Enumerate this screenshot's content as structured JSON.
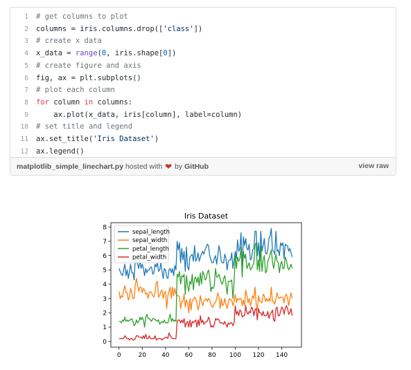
{
  "gist": {
    "code_lines": [
      [
        {
          "t": "# get columns to plot",
          "c": "comment"
        }
      ],
      [
        {
          "t": "columns = iris.columns.drop(["
        },
        {
          "t": "'class'",
          "c": "str"
        },
        {
          "t": "])"
        }
      ],
      [
        {
          "t": "# create x data",
          "c": "comment"
        }
      ],
      [
        {
          "t": "x_data = "
        },
        {
          "t": "range",
          "c": "builtin"
        },
        {
          "t": "("
        },
        {
          "t": "0",
          "c": "num"
        },
        {
          "t": ", iris.shape["
        },
        {
          "t": "0",
          "c": "num"
        },
        {
          "t": "])"
        }
      ],
      [
        {
          "t": "# create figure and axis",
          "c": "comment"
        }
      ],
      [
        {
          "t": "fig, ax = plt.subplots()"
        }
      ],
      [
        {
          "t": "# plot each column",
          "c": "comment"
        }
      ],
      [
        {
          "t": "for",
          "c": "kw"
        },
        {
          "t": " column "
        },
        {
          "t": "in",
          "c": "kw"
        },
        {
          "t": " columns:"
        }
      ],
      [
        {
          "t": "    ax.plot(x_data, iris[column], label=column)"
        }
      ],
      [
        {
          "t": "# set title and legend",
          "c": "comment"
        }
      ],
      [
        {
          "t": "ax.set_title("
        },
        {
          "t": "'Iris Dataset'",
          "c": "str"
        },
        {
          "t": ")"
        }
      ],
      [
        {
          "t": "ax.legend()"
        }
      ]
    ],
    "line_numbers": [
      "1",
      "2",
      "3",
      "4",
      "5",
      "6",
      "7",
      "8",
      "9",
      "10",
      "11",
      "12"
    ],
    "filename": "matplotlib_simple_linechart.py",
    "hosted_with": "hosted with",
    "by": "by",
    "github": "GitHub",
    "view_raw": "view raw",
    "heart_icon": "heart-icon"
  },
  "chart_data": {
    "type": "line",
    "title": "Iris Dataset",
    "xlabel": "",
    "ylabel": "",
    "xlim": [
      -7,
      157
    ],
    "ylim": [
      -0.4,
      8.3
    ],
    "xticks": [
      0,
      20,
      40,
      60,
      80,
      100,
      120,
      140
    ],
    "yticks": [
      0,
      1,
      2,
      3,
      4,
      5,
      6,
      7,
      8
    ],
    "legend_position": "upper-left",
    "grid": false,
    "series": [
      {
        "name": "sepal_length",
        "color": "#1f77b4",
        "values": [
          5.1,
          4.9,
          4.7,
          4.6,
          5.0,
          5.4,
          4.6,
          5.0,
          4.4,
          4.9,
          5.4,
          4.8,
          4.8,
          4.3,
          5.8,
          5.7,
          5.4,
          5.1,
          5.7,
          5.1,
          5.4,
          5.1,
          4.6,
          5.1,
          4.8,
          5.0,
          5.0,
          5.2,
          5.2,
          4.7,
          4.8,
          5.4,
          5.2,
          5.5,
          4.9,
          5.0,
          5.5,
          4.9,
          4.4,
          5.1,
          5.0,
          4.5,
          4.4,
          5.0,
          5.1,
          4.8,
          5.1,
          4.6,
          5.3,
          5.0,
          7.0,
          6.4,
          6.9,
          5.5,
          6.5,
          5.7,
          6.3,
          4.9,
          6.6,
          5.2,
          5.0,
          5.9,
          6.0,
          6.1,
          5.6,
          6.7,
          5.6,
          5.8,
          6.2,
          5.6,
          5.9,
          6.1,
          6.3,
          6.1,
          6.4,
          6.6,
          6.8,
          6.7,
          6.0,
          5.7,
          5.5,
          5.5,
          5.8,
          6.0,
          5.4,
          6.0,
          6.7,
          6.3,
          5.6,
          5.5,
          5.5,
          6.1,
          5.8,
          5.0,
          5.6,
          5.7,
          5.7,
          6.2,
          5.1,
          5.7,
          6.3,
          5.8,
          7.1,
          6.3,
          6.5,
          7.6,
          4.9,
          7.3,
          6.7,
          7.2,
          6.5,
          6.4,
          6.8,
          5.7,
          5.8,
          6.4,
          6.5,
          7.7,
          7.7,
          6.0,
          6.9,
          5.6,
          7.7,
          6.3,
          6.7,
          7.2,
          6.2,
          6.1,
          6.4,
          7.2,
          7.4,
          7.9,
          6.4,
          6.3,
          6.1,
          7.7,
          6.3,
          6.4,
          6.0,
          6.9,
          6.7,
          6.9,
          5.8,
          6.8,
          6.7,
          6.7,
          6.3,
          6.5,
          6.2,
          5.9
        ]
      },
      {
        "name": "sepal_width",
        "color": "#ff7f0e",
        "values": [
          3.5,
          3.0,
          3.2,
          3.1,
          3.6,
          3.9,
          3.4,
          3.4,
          2.9,
          3.1,
          3.7,
          3.4,
          3.0,
          3.0,
          4.0,
          4.4,
          3.9,
          3.5,
          3.8,
          3.8,
          3.4,
          3.7,
          3.6,
          3.3,
          3.4,
          3.0,
          3.4,
          3.5,
          3.4,
          3.2,
          3.1,
          3.4,
          4.1,
          4.2,
          3.1,
          3.2,
          3.5,
          3.6,
          3.0,
          3.4,
          3.5,
          2.3,
          3.2,
          3.5,
          3.8,
          3.0,
          3.8,
          3.2,
          3.7,
          3.3,
          3.2,
          3.2,
          3.1,
          2.3,
          2.8,
          2.8,
          3.3,
          2.4,
          2.9,
          2.7,
          2.0,
          3.0,
          2.2,
          2.9,
          2.9,
          3.1,
          3.0,
          2.7,
          2.2,
          2.5,
          3.2,
          2.8,
          2.5,
          2.8,
          2.9,
          3.0,
          2.8,
          3.0,
          2.9,
          2.6,
          2.4,
          2.4,
          2.7,
          2.7,
          3.0,
          3.4,
          3.1,
          2.3,
          3.0,
          2.5,
          2.6,
          3.0,
          2.6,
          2.3,
          2.7,
          3.0,
          2.9,
          2.9,
          2.5,
          2.8,
          3.3,
          2.7,
          3.0,
          2.9,
          3.0,
          3.0,
          2.5,
          2.9,
          2.5,
          3.6,
          3.2,
          2.7,
          3.0,
          2.5,
          2.8,
          3.2,
          3.0,
          3.8,
          2.6,
          2.2,
          3.2,
          2.8,
          2.8,
          2.7,
          3.3,
          3.2,
          2.8,
          3.0,
          2.8,
          3.0,
          2.8,
          3.8,
          2.8,
          2.8,
          2.6,
          3.0,
          3.4,
          3.1,
          3.0,
          3.1,
          3.1,
          3.1,
          2.7,
          3.2,
          3.3,
          3.0,
          2.5,
          3.0,
          3.4,
          3.0
        ]
      },
      {
        "name": "petal_length",
        "color": "#2ca02c",
        "values": [
          1.4,
          1.4,
          1.3,
          1.5,
          1.4,
          1.7,
          1.4,
          1.5,
          1.4,
          1.5,
          1.5,
          1.6,
          1.4,
          1.1,
          1.2,
          1.5,
          1.3,
          1.4,
          1.7,
          1.5,
          1.7,
          1.5,
          1.0,
          1.7,
          1.9,
          1.6,
          1.6,
          1.5,
          1.4,
          1.6,
          1.6,
          1.5,
          1.5,
          1.4,
          1.5,
          1.2,
          1.3,
          1.4,
          1.3,
          1.5,
          1.3,
          1.3,
          1.3,
          1.6,
          1.9,
          1.4,
          1.6,
          1.4,
          1.5,
          1.4,
          4.7,
          4.5,
          4.9,
          4.0,
          4.6,
          4.5,
          4.7,
          3.3,
          4.6,
          3.9,
          3.5,
          4.2,
          4.0,
          4.7,
          3.6,
          4.4,
          4.5,
          4.1,
          4.5,
          3.9,
          4.8,
          4.0,
          4.9,
          4.7,
          4.3,
          4.4,
          4.8,
          5.0,
          4.5,
          3.5,
          3.8,
          3.7,
          3.9,
          5.1,
          4.5,
          4.5,
          4.7,
          4.4,
          4.1,
          4.0,
          4.4,
          4.6,
          4.0,
          3.3,
          4.2,
          4.2,
          4.2,
          4.3,
          3.0,
          4.1,
          6.0,
          5.1,
          5.9,
          5.6,
          5.8,
          6.6,
          4.5,
          6.3,
          5.8,
          6.1,
          5.1,
          5.3,
          5.5,
          5.0,
          5.1,
          5.3,
          5.5,
          6.7,
          6.9,
          5.0,
          5.7,
          4.9,
          6.7,
          4.9,
          5.7,
          6.0,
          4.8,
          4.9,
          5.6,
          5.8,
          6.1,
          6.4,
          5.6,
          5.1,
          5.6,
          6.1,
          5.6,
          5.5,
          4.8,
          5.4,
          5.6,
          5.1,
          5.1,
          5.9,
          5.7,
          5.2,
          5.0,
          5.2,
          5.4,
          5.1
        ]
      },
      {
        "name": "petal_width",
        "color": "#d62728",
        "values": [
          0.2,
          0.2,
          0.2,
          0.2,
          0.2,
          0.4,
          0.3,
          0.2,
          0.2,
          0.1,
          0.2,
          0.2,
          0.1,
          0.1,
          0.2,
          0.4,
          0.4,
          0.3,
          0.3,
          0.3,
          0.2,
          0.4,
          0.2,
          0.5,
          0.2,
          0.2,
          0.4,
          0.2,
          0.2,
          0.2,
          0.2,
          0.4,
          0.1,
          0.2,
          0.2,
          0.2,
          0.2,
          0.1,
          0.2,
          0.2,
          0.3,
          0.3,
          0.2,
          0.6,
          0.4,
          0.3,
          0.2,
          0.2,
          0.2,
          0.2,
          1.4,
          1.5,
          1.5,
          1.3,
          1.5,
          1.3,
          1.6,
          1.0,
          1.3,
          1.4,
          1.0,
          1.5,
          1.0,
          1.4,
          1.3,
          1.4,
          1.5,
          1.0,
          1.5,
          1.1,
          1.8,
          1.3,
          1.5,
          1.2,
          1.3,
          1.4,
          1.4,
          1.7,
          1.5,
          1.0,
          1.1,
          1.0,
          1.2,
          1.6,
          1.5,
          1.6,
          1.5,
          1.3,
          1.3,
          1.3,
          1.2,
          1.4,
          1.2,
          1.0,
          1.3,
          1.2,
          1.3,
          1.3,
          1.1,
          1.3,
          2.5,
          1.9,
          2.1,
          1.8,
          2.2,
          2.1,
          1.7,
          1.8,
          1.8,
          2.5,
          2.0,
          1.9,
          2.1,
          2.0,
          2.4,
          2.3,
          1.8,
          2.2,
          2.3,
          1.5,
          2.3,
          2.0,
          2.0,
          1.8,
          2.1,
          1.8,
          1.8,
          1.8,
          2.1,
          1.6,
          1.9,
          2.0,
          2.2,
          1.5,
          1.4,
          2.3,
          2.4,
          1.8,
          1.8,
          2.1,
          2.4,
          2.3,
          1.9,
          2.3,
          2.5,
          2.3,
          1.9,
          2.0,
          2.3,
          1.8
        ]
      }
    ]
  }
}
